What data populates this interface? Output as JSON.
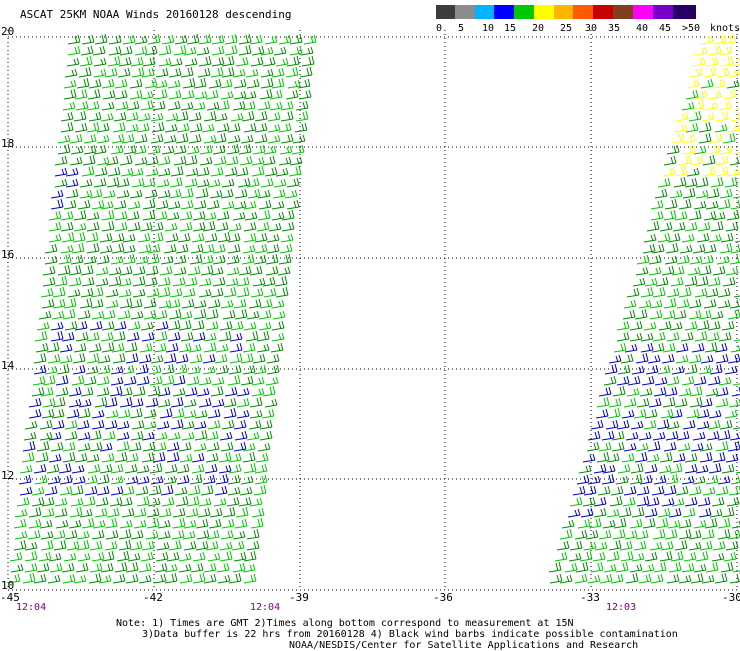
{
  "title": "ASCAT 25KM NOAA Winds 20160128 descending",
  "legend": {
    "units": "knots",
    "bins": [
      {
        "label": "0",
        "color": "#3c3c3c"
      },
      {
        "label": "5",
        "color": "#8c8c8c"
      },
      {
        "label": "10",
        "color": "#00b4ff"
      },
      {
        "label": "15",
        "color": "#0000ff"
      },
      {
        "label": "20",
        "color": "#00c800"
      },
      {
        "label": "25",
        "color": "#ffff00"
      },
      {
        "label": "30",
        "color": "#ffb400"
      },
      {
        "label": "35",
        "color": "#ff5a00"
      },
      {
        "label": "40",
        "color": "#c80000"
      },
      {
        "label": "45",
        "color": "#804020"
      },
      {
        "label": ">50",
        "color": "#ff00ff"
      },
      {
        "label": "",
        "color": "#7800c8"
      },
      {
        "label": "",
        "color": "#280064"
      }
    ]
  },
  "axes": {
    "lat_ticks": [
      "20",
      "18",
      "16",
      "14",
      "12",
      "10"
    ],
    "lon_ticks": [
      "-45",
      "-42",
      "-39",
      "-36",
      "-33",
      "-30"
    ],
    "lat_range": [
      10,
      20
    ],
    "lon_range": [
      -45,
      -30
    ]
  },
  "pass_times": [
    "12:04",
    "12:04",
    "12:03"
  ],
  "notes": [
    "Note: 1) Times are GMT 2)Times along bottom correspond to measurement at 15N",
    "3)Data buffer is 22 hrs from 20160128 4) Black wind barbs indicate possible contamination",
    "NOAA/NESDIS/Center for Satellite Applications and Research"
  ],
  "swaths": [
    {
      "name": "west",
      "dominant_speed_knots": "15-20",
      "colors": [
        "#00c800",
        "#0000ff"
      ]
    },
    {
      "name": "east",
      "dominant_speed_knots": "15-25",
      "colors": [
        "#00c800",
        "#0000ff",
        "#ffff00"
      ]
    }
  ]
}
